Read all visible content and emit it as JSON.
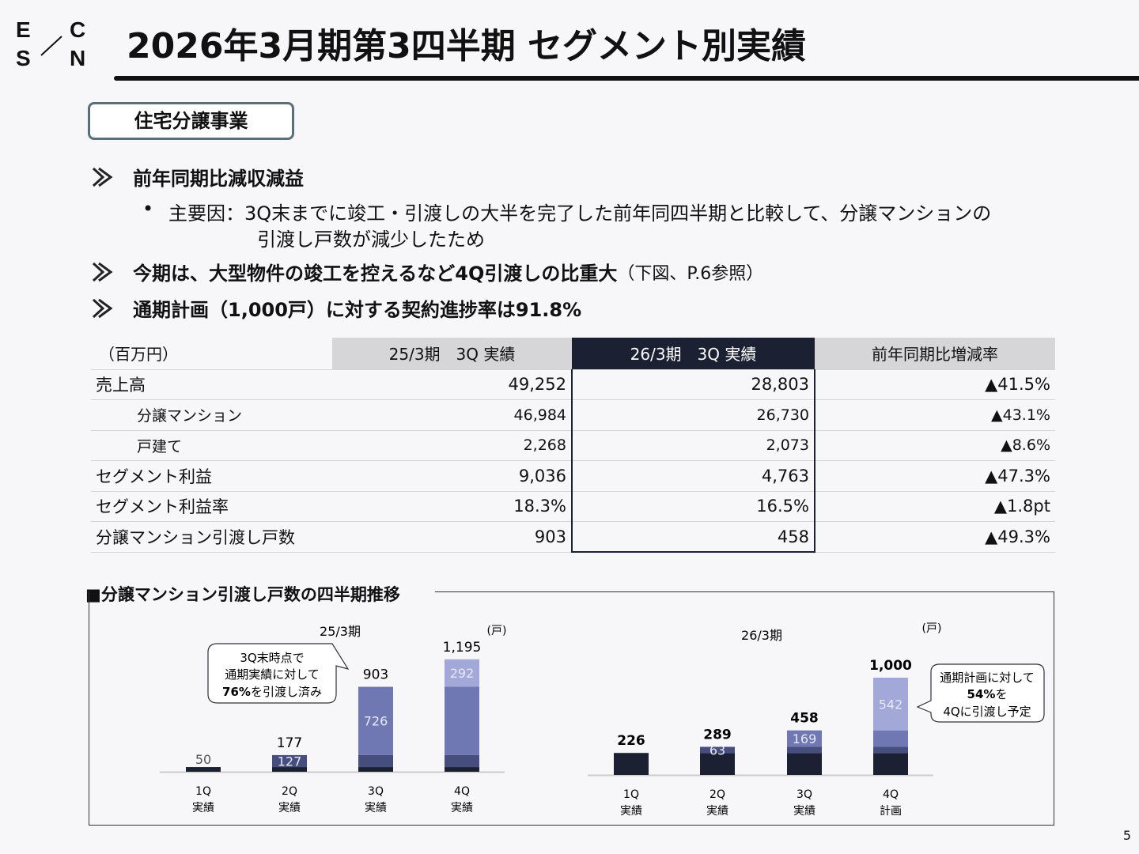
{
  "logo": {
    "letters": [
      "E",
      "C",
      "S",
      "N"
    ]
  },
  "header": {
    "title": "2026年3月期第3四半期 セグメント別実績"
  },
  "segment_label": "住宅分譲事業",
  "bullets": [
    {
      "text": "前年同期比減収減益",
      "sub": [
        {
          "line1": "主要因：3Q末までに竣工・引渡しの大半を完了した前年同四半期と比較して、分譲マンションの",
          "line2": "引渡し戸数が減少したため"
        }
      ]
    },
    {
      "text": "今期は、大型物件の竣工を控えるなど4Q引渡しの比重大",
      "note": "（下図、P.6参照）"
    },
    {
      "text": "通期計画（1,000戸）に対する契約進捗率は91.8%"
    }
  ],
  "table": {
    "unit": "（百万円）",
    "headers": [
      "25/3期　3Q 実績",
      "26/3期　3Q 実績",
      "前年同期比増減率"
    ],
    "rows": [
      {
        "label": "売上高",
        "values": [
          "49,252",
          "28,803",
          "▲41.5%"
        ],
        "indent": false
      },
      {
        "label": "分譲マンション",
        "values": [
          "46,984",
          "26,730",
          "▲43.1%"
        ],
        "indent": true
      },
      {
        "label": "戸建て",
        "values": [
          "2,268",
          "2,073",
          "▲8.6%"
        ],
        "indent": true
      },
      {
        "label": "セグメント利益",
        "values": [
          "9,036",
          "4,763",
          "▲47.3%"
        ],
        "indent": false
      },
      {
        "label": "セグメント利益率",
        "values": [
          "18.3%",
          "16.5%",
          "▲1.8pt"
        ],
        "indent": false
      },
      {
        "label": "分譲マンション引渡し戸数",
        "values": [
          "903",
          "458",
          "▲49.3%"
        ],
        "indent": false
      }
    ]
  },
  "chart_section_title": "■分譲マンション引渡し戸数の四半期推移",
  "colors": {
    "q1": "#1c2033",
    "q2": "#464e7e",
    "q3": "#7078b4",
    "q4": "#a2a8d8",
    "accent": "#1c2033"
  },
  "chart_data": [
    {
      "type": "bar",
      "stacked": "cumulative",
      "title": "25/3期",
      "unit": "(戸)",
      "categories": [
        [
          "1Q",
          "実績"
        ],
        [
          "2Q",
          "実績"
        ],
        [
          "3Q",
          "実績"
        ],
        [
          "4Q",
          "実績"
        ]
      ],
      "increments": [
        50,
        127,
        726,
        292
      ],
      "totals": [
        50,
        177,
        903,
        1195
      ],
      "increment_labels": [
        "50",
        "127",
        "726",
        "292"
      ],
      "total_labels": [
        "",
        "177",
        "903",
        "1,195"
      ],
      "callout": {
        "line1": "3Q末時点で",
        "line2": "通期実績に対して",
        "bold": "76%",
        "rest": "を引渡し済み"
      }
    },
    {
      "type": "bar",
      "stacked": "cumulative",
      "title": "26/3期",
      "unit": "(戸)",
      "categories": [
        [
          "1Q",
          "実績"
        ],
        [
          "2Q",
          "実績"
        ],
        [
          "3Q",
          "実績"
        ],
        [
          "4Q",
          "計画"
        ]
      ],
      "increments": [
        226,
        63,
        169,
        542
      ],
      "totals": [
        226,
        289,
        458,
        1000
      ],
      "increment_labels": [
        "",
        "63",
        "169",
        "542"
      ],
      "total_labels": [
        "226",
        "289",
        "458",
        "1,000"
      ],
      "callout": {
        "line1": "通期計画に対して",
        "bold": "54%",
        "rest": "を",
        "line3": "4Qに引渡し予定"
      }
    }
  ],
  "page_number": "5"
}
